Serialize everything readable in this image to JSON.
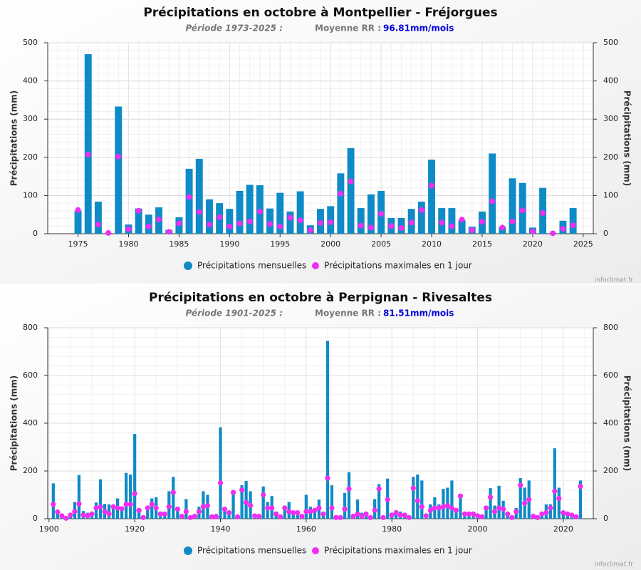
{
  "chart_data": [
    {
      "type": "bar",
      "title": "Précipitations en octobre à Montpellier - Fréjorgues",
      "period": "Période 1973-2025 :",
      "mean_label": "Moyenne RR :",
      "mean_value": "96.81mm/mois",
      "y_label": "Précipitations (mm)",
      "y2_label": "Précipitations (mm)",
      "credit": "infoclimat.fr",
      "x": [
        1975,
        1976,
        1977,
        1978,
        1979,
        1980,
        1981,
        1982,
        1983,
        1984,
        1985,
        1986,
        1987,
        1988,
        1989,
        1990,
        1991,
        1992,
        1993,
        1994,
        1995,
        1996,
        1997,
        1998,
        1999,
        2000,
        2001,
        2002,
        2003,
        2004,
        2005,
        2006,
        2007,
        2008,
        2009,
        2010,
        2011,
        2012,
        2013,
        2014,
        2015,
        2016,
        2017,
        2018,
        2019,
        2020,
        2021,
        2022,
        2023,
        2024
      ],
      "series": [
        {
          "name": "Précipitations mensuelles",
          "color": "#0e8bc6",
          "values": [
            60,
            470,
            84,
            2,
            333,
            24,
            66,
            50,
            69,
            10,
            43,
            170,
            196,
            90,
            80,
            65,
            112,
            128,
            127,
            66,
            107,
            58,
            111,
            22,
            65,
            72,
            158,
            224,
            67,
            103,
            112,
            41,
            41,
            65,
            84,
            194,
            67,
            67,
            35,
            18,
            58,
            210,
            18,
            145,
            133,
            16,
            120,
            2,
            34,
            67
          ]
        },
        {
          "name": "Précipitations maximales en 1 jour",
          "color": "#f02ef0",
          "values": [
            62,
            207,
            24,
            2,
            202,
            12,
            60,
            19,
            37,
            5,
            27,
            96,
            57,
            24,
            43,
            19,
            27,
            32,
            58,
            25,
            19,
            42,
            35,
            9,
            28,
            30,
            105,
            137,
            21,
            16,
            52,
            20,
            15,
            29,
            62,
            126,
            29,
            20,
            37,
            9,
            31,
            85,
            16,
            32,
            61,
            6,
            54,
            1,
            13,
            22
          ]
        }
      ],
      "xlim": [
        1972,
        2026
      ],
      "xticks": [
        1975,
        1980,
        1985,
        1990,
        1995,
        2000,
        2005,
        2010,
        2015,
        2020,
        2025
      ],
      "ylim": [
        0,
        500
      ],
      "yticks": [
        0,
        100,
        200,
        300,
        400,
        500
      ],
      "y2lim": [
        0,
        500
      ],
      "y2ticks": [
        0,
        100,
        200,
        300,
        400,
        500
      ],
      "grid": true,
      "legend": "bottom"
    },
    {
      "type": "bar",
      "title": "Précipitations en octobre à Perpignan - Rivesaltes",
      "period": "Période 1901-2025 :",
      "mean_label": "Moyenne RR :",
      "mean_value": "81.51mm/mois",
      "y_label": "Précipitations (mm)",
      "y2_label": "Précipitations (mm)",
      "credit": "infoclimat.fr",
      "x": [
        1901,
        1902,
        1903,
        1904,
        1905,
        1906,
        1907,
        1908,
        1909,
        1910,
        1911,
        1912,
        1913,
        1914,
        1915,
        1916,
        1917,
        1918,
        1919,
        1920,
        1921,
        1922,
        1923,
        1924,
        1925,
        1926,
        1927,
        1928,
        1929,
        1930,
        1931,
        1932,
        1933,
        1934,
        1935,
        1936,
        1937,
        1938,
        1939,
        1940,
        1941,
        1942,
        1943,
        1944,
        1945,
        1946,
        1947,
        1948,
        1949,
        1950,
        1951,
        1952,
        1953,
        1954,
        1955,
        1956,
        1957,
        1958,
        1959,
        1960,
        1961,
        1962,
        1963,
        1964,
        1965,
        1966,
        1967,
        1968,
        1969,
        1970,
        1971,
        1972,
        1973,
        1974,
        1975,
        1976,
        1977,
        1978,
        1979,
        1980,
        1981,
        1982,
        1983,
        1984,
        1985,
        1986,
        1987,
        1988,
        1989,
        1990,
        1991,
        1992,
        1993,
        1994,
        1995,
        1996,
        1997,
        1998,
        1999,
        2000,
        2001,
        2002,
        2003,
        2004,
        2005,
        2006,
        2007,
        2008,
        2009,
        2010,
        2011,
        2012,
        2013,
        2014,
        2015,
        2016,
        2017,
        2018,
        2019,
        2020,
        2021,
        2022,
        2023,
        2024
      ],
      "series": [
        {
          "name": "Précipitations mensuelles",
          "color": "#0e8bc6",
          "values": [
            148,
            25,
            18,
            5,
            20,
            70,
            183,
            32,
            25,
            20,
            68,
            165,
            62,
            60,
            50,
            85,
            50,
            192,
            185,
            355,
            30,
            8,
            45,
            85,
            90,
            30,
            25,
            115,
            175,
            50,
            10,
            82,
            10,
            20,
            50,
            115,
            100,
            10,
            20,
            383,
            40,
            25,
            108,
            10,
            140,
            158,
            115,
            15,
            10,
            135,
            70,
            95,
            30,
            10,
            55,
            70,
            30,
            20,
            15,
            100,
            50,
            45,
            80,
            15,
            745,
            140,
            10,
            10,
            108,
            195,
            15,
            80,
            25,
            15,
            10,
            82,
            145,
            10,
            168,
            25,
            35,
            30,
            15,
            10,
            175,
            185,
            160,
            15,
            60,
            90,
            60,
            125,
            130,
            160,
            45,
            100,
            20,
            20,
            25,
            15,
            10,
            50,
            128,
            55,
            138,
            75,
            25,
            10,
            45,
            170,
            130,
            160,
            15,
            10,
            25,
            60,
            60,
            295,
            130,
            25,
            20,
            15,
            10,
            160
          ]
        },
        {
          "name": "Précipitations maximales en 1 jour",
          "color": "#f02ef0",
          "values": [
            60,
            28,
            12,
            2,
            15,
            30,
            62,
            15,
            12,
            20,
            45,
            50,
            30,
            20,
            50,
            45,
            42,
            60,
            60,
            105,
            35,
            5,
            45,
            60,
            45,
            20,
            20,
            50,
            110,
            40,
            10,
            30,
            5,
            10,
            30,
            50,
            55,
            8,
            8,
            150,
            40,
            25,
            110,
            8,
            120,
            68,
            55,
            12,
            10,
            100,
            45,
            45,
            20,
            8,
            45,
            30,
            25,
            25,
            10,
            30,
            30,
            35,
            45,
            20,
            170,
            45,
            5,
            5,
            40,
            125,
            10,
            20,
            10,
            20,
            5,
            35,
            125,
            5,
            80,
            15,
            25,
            15,
            15,
            5,
            128,
            75,
            50,
            12,
            35,
            45,
            45,
            50,
            55,
            45,
            35,
            95,
            20,
            20,
            20,
            12,
            8,
            45,
            90,
            30,
            45,
            40,
            20,
            5,
            30,
            140,
            65,
            80,
            10,
            5,
            20,
            25,
            45,
            115,
            85,
            25,
            20,
            15,
            8,
            135
          ]
        }
      ],
      "xlim": [
        1899.7,
        2027
      ],
      "xticks": [
        1900,
        1920,
        1940,
        1960,
        1980,
        2000,
        2020
      ],
      "ylim": [
        0,
        800
      ],
      "yticks": [
        0,
        200,
        400,
        600,
        800
      ],
      "y2lim": [
        0,
        800
      ],
      "y2ticks": [
        0,
        200,
        400,
        600,
        800
      ],
      "grid": true,
      "legend": "bottom"
    }
  ]
}
